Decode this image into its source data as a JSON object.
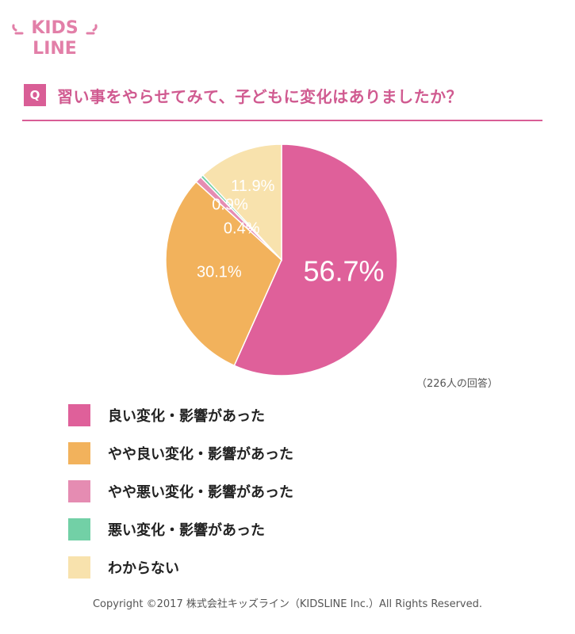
{
  "logo": {
    "line1": "KIDS",
    "line2": "LINE",
    "color": "#e27fa8"
  },
  "question": {
    "badge": "Q",
    "text": "習い事をやらせてみて、子どもに変化はありましたか？",
    "color": "#d95e96"
  },
  "chart_data": {
    "type": "pie",
    "slices": [
      {
        "label": "良い変化・影響があった",
        "value": 56.7,
        "value_label": "56.7%",
        "color": "#df609a"
      },
      {
        "label": "やや良い変化・影響があった",
        "value": 30.1,
        "value_label": "30.1%",
        "color": "#f2b25c"
      },
      {
        "label": "やや悪い変化・影響があった",
        "value": 0.9,
        "value_label": "0.9%",
        "color": "#e58cb2"
      },
      {
        "label": "悪い変化・影響があった",
        "value": 0.4,
        "value_label": "0.4%",
        "color": "#72d0a6"
      },
      {
        "label": "わからない",
        "value": 11.9,
        "value_label": "11.9%",
        "color": "#f8e2ad"
      }
    ],
    "start": "12 o'clock",
    "direction": "clockwise"
  },
  "note": "（226人の回答）",
  "copyright": "Copyright ©2017 株式会社キッズライン（KIDSLINE Inc.）All Rights Reserved."
}
